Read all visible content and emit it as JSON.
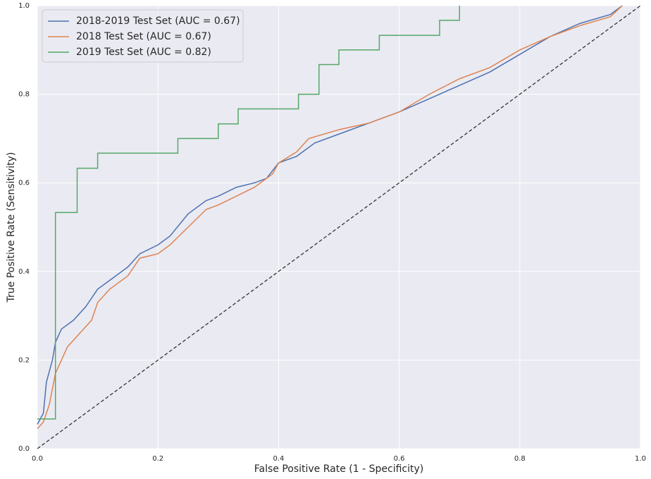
{
  "chart_data": {
    "type": "line",
    "xlabel": "False Positive Rate (1 - Specificity)",
    "ylabel": "True Positive Rate (Sensitivity)",
    "xlim": [
      0,
      1
    ],
    "ylim": [
      0,
      1
    ],
    "xticks": [
      {
        "value": 0,
        "label": "0.0"
      },
      0.2,
      0.4,
      0.6,
      0.8,
      {
        "value": 1,
        "label": "1.0"
      }
    ],
    "yticks": [
      {
        "value": 0,
        "label": "0.0"
      },
      0.2,
      0.4,
      0.6,
      0.8,
      {
        "value": 1,
        "label": "1.0"
      }
    ],
    "grid": true,
    "legend": "upper left",
    "series": [
      {
        "name": "2018-2019 Test Set (AUC = 0.67)",
        "color": "#4c72b0",
        "x": [
          0,
          0.01,
          0.015,
          0.025,
          0.03,
          0.04,
          0.06,
          0.08,
          0.1,
          0.12,
          0.15,
          0.17,
          0.2,
          0.22,
          0.25,
          0.28,
          0.3,
          0.33,
          0.36,
          0.38,
          0.4,
          0.43,
          0.46,
          0.5,
          0.55,
          0.6,
          0.65,
          0.7,
          0.75,
          0.8,
          0.85,
          0.9,
          0.95,
          0.97
        ],
        "values": [
          0.055,
          0.08,
          0.15,
          0.2,
          0.24,
          0.27,
          0.29,
          0.32,
          0.36,
          0.38,
          0.41,
          0.44,
          0.46,
          0.48,
          0.53,
          0.56,
          0.57,
          0.59,
          0.6,
          0.61,
          0.645,
          0.66,
          0.69,
          0.71,
          0.735,
          0.76,
          0.79,
          0.82,
          0.85,
          0.89,
          0.93,
          0.96,
          0.98,
          1.0
        ]
      },
      {
        "name": "2018 Test Set (AUC = 0.67)",
        "color": "#dd8452",
        "x": [
          0,
          0.01,
          0.02,
          0.03,
          0.04,
          0.05,
          0.07,
          0.09,
          0.1,
          0.12,
          0.15,
          0.17,
          0.2,
          0.22,
          0.25,
          0.28,
          0.3,
          0.33,
          0.36,
          0.39,
          0.4,
          0.43,
          0.45,
          0.5,
          0.55,
          0.6,
          0.65,
          0.7,
          0.75,
          0.8,
          0.85,
          0.9,
          0.95,
          0.97
        ],
        "values": [
          0.045,
          0.06,
          0.1,
          0.17,
          0.2,
          0.23,
          0.26,
          0.29,
          0.33,
          0.36,
          0.39,
          0.43,
          0.44,
          0.46,
          0.5,
          0.54,
          0.55,
          0.57,
          0.59,
          0.62,
          0.645,
          0.67,
          0.7,
          0.72,
          0.735,
          0.76,
          0.8,
          0.835,
          0.86,
          0.9,
          0.93,
          0.955,
          0.975,
          1.0
        ]
      },
      {
        "name": "2019 Test Set (AUC = 0.82)",
        "color": "#55a868",
        "x": [
          0,
          0.03,
          0.03,
          0.066,
          0.066,
          0.1,
          0.1,
          0.233,
          0.233,
          0.3,
          0.3,
          0.333,
          0.333,
          0.433,
          0.433,
          0.467,
          0.467,
          0.5,
          0.5,
          0.567,
          0.567,
          0.667,
          0.667,
          0.7,
          0.7
        ],
        "values": [
          0.067,
          0.067,
          0.533,
          0.533,
          0.633,
          0.633,
          0.667,
          0.667,
          0.7,
          0.7,
          0.733,
          0.733,
          0.767,
          0.767,
          0.8,
          0.8,
          0.867,
          0.867,
          0.9,
          0.9,
          0.933,
          0.933,
          0.967,
          0.967,
          1.0
        ]
      }
    ]
  }
}
